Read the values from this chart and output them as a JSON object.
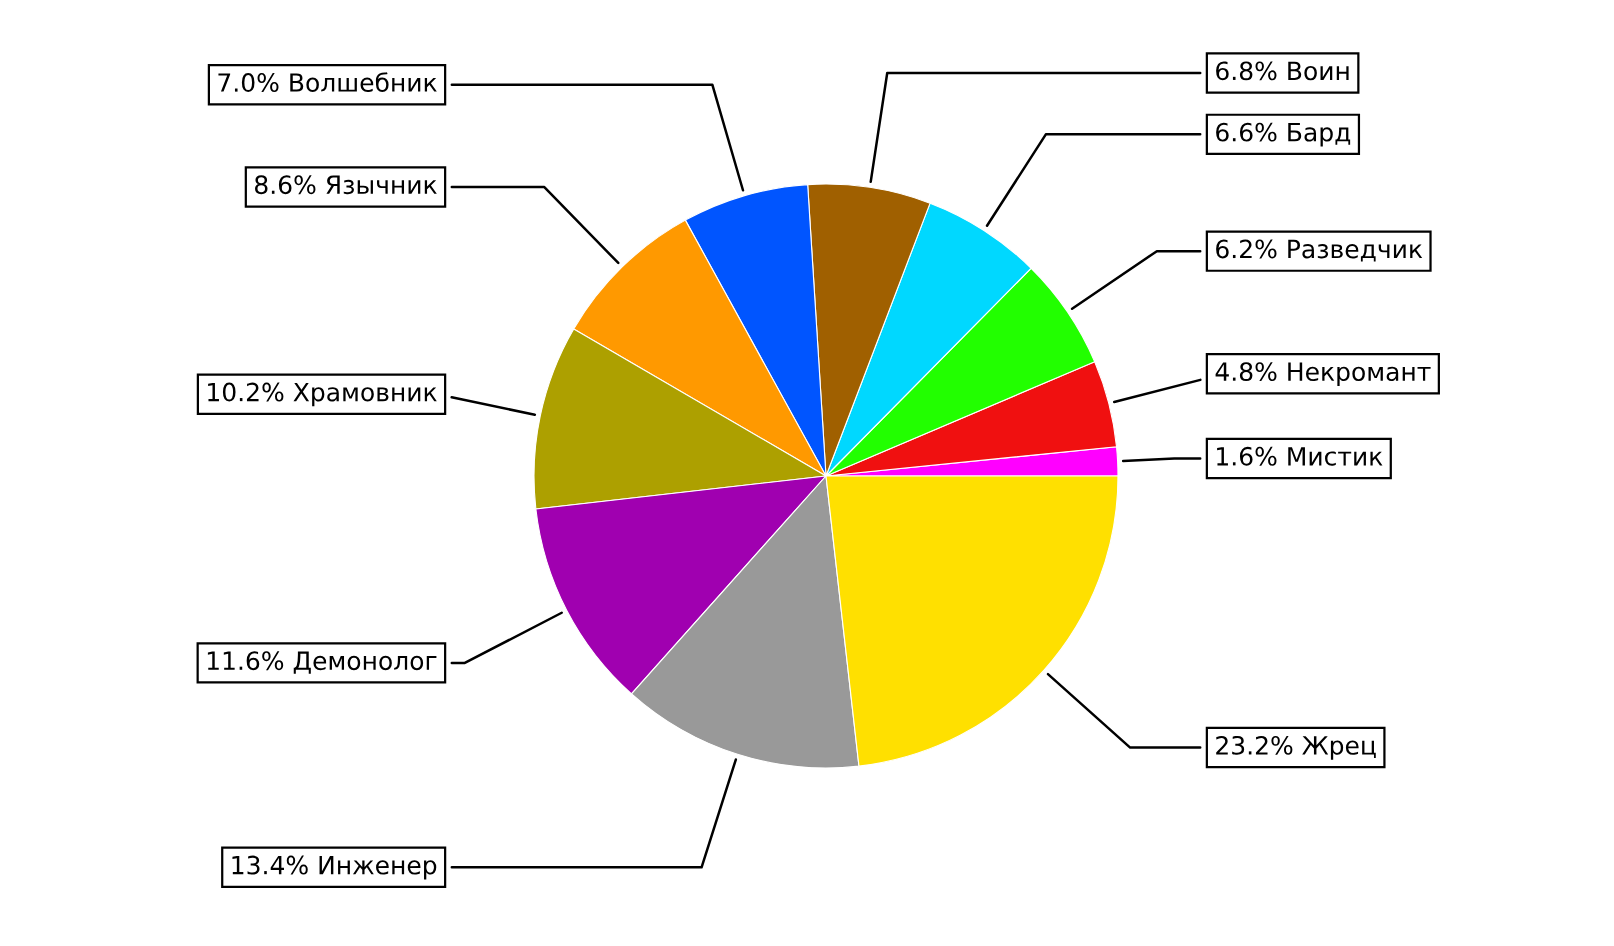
{
  "chart_data": {
    "type": "pie",
    "categories": [
      "Мистик",
      "Некромант",
      "Разведчик",
      "Бард",
      "Воин",
      "Волшебник",
      "Язычник",
      "Храмовник",
      "Демонолог",
      "Инженер",
      "Жрец"
    ],
    "values": [
      1.6,
      4.8,
      6.2,
      6.6,
      6.8,
      7.0,
      8.6,
      10.2,
      11.6,
      13.4,
      23.2
    ],
    "value_labels": [
      "1.6%",
      "4.8%",
      "6.2%",
      "6.6%",
      "6.8%",
      "7.0%",
      "8.6%",
      "10.2%",
      "11.6%",
      "13.4%",
      "23.2%"
    ],
    "colors": [
      "#ff00ff",
      "#f01010",
      "#22ff00",
      "#00d8ff",
      "#a06000",
      "#0055ff",
      "#ff9900",
      "#ada000",
      "#a000b0",
      "#999999",
      "#ffe000"
    ]
  }
}
